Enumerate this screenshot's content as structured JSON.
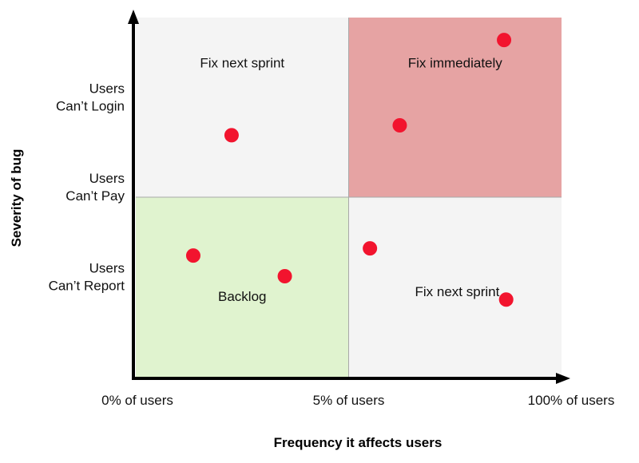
{
  "chart_data": {
    "type": "scatter",
    "title": "",
    "xlabel": "Frequency it affects users",
    "ylabel": "Severity of bug",
    "x_ticks": [
      "0% of users",
      "5% of users",
      "100% of users"
    ],
    "y_ticks": [
      {
        "lines": [
          "Users",
          "Can’t Report"
        ],
        "level": 1
      },
      {
        "lines": [
          "Users",
          "Can’t Pay"
        ],
        "level": 2
      },
      {
        "lines": [
          "Users",
          "Can’t Login"
        ],
        "level": 3
      }
    ],
    "xlim": [
      0,
      2
    ],
    "ylim": [
      0,
      4
    ],
    "quadrants": [
      {
        "label": "Fix next sprint",
        "x0": 0,
        "x1": 1,
        "y0": 2,
        "y1": 4,
        "color": "#f4f4f4",
        "lx": 0.5,
        "ly": 3.5
      },
      {
        "label": "Fix immediately",
        "x0": 1,
        "x1": 2,
        "y0": 2,
        "y1": 4,
        "color": "#e6a3a3",
        "lx": 1.5,
        "ly": 3.5
      },
      {
        "label": "Backlog",
        "x0": 0,
        "x1": 1,
        "y0": 0,
        "y1": 2,
        "color": "#e0f3cf",
        "lx": 0.5,
        "ly": 0.9
      },
      {
        "label": "Fix next sprint",
        "x0": 1,
        "x1": 2,
        "y0": 0,
        "y1": 2,
        "color": "#f4f4f4",
        "lx": 1.51,
        "ly": 0.95
      }
    ],
    "points": [
      {
        "x": 0.45,
        "y": 2.69
      },
      {
        "x": 1.24,
        "y": 2.8
      },
      {
        "x": 1.73,
        "y": 3.75
      },
      {
        "x": 0.27,
        "y": 1.35
      },
      {
        "x": 0.7,
        "y": 1.12
      },
      {
        "x": 1.1,
        "y": 1.43
      },
      {
        "x": 1.74,
        "y": 0.86
      }
    ],
    "point_color": "#f2142e",
    "divider_color": "#a8a8a8"
  }
}
